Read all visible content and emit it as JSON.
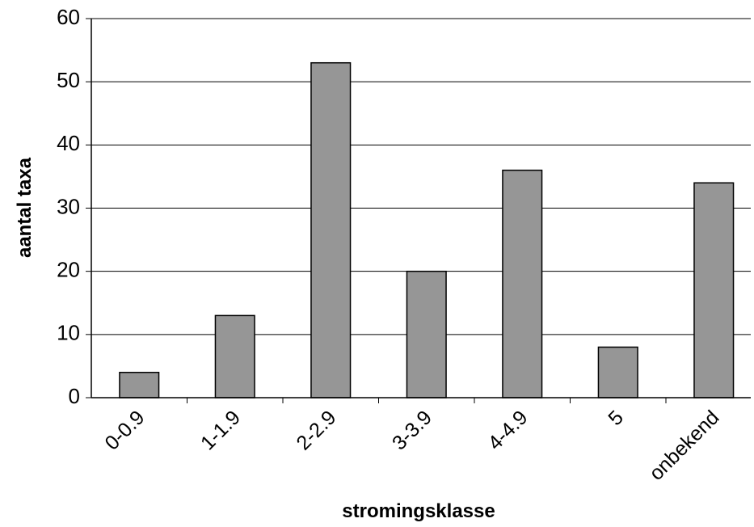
{
  "chart_data": {
    "type": "bar",
    "categories": [
      "0-0.9",
      "1-1.9",
      "2-2.9",
      "3-3.9",
      "4-4.9",
      "5",
      "onbekend"
    ],
    "values": [
      4,
      13,
      53,
      20,
      36,
      8,
      34
    ],
    "color": "#969696",
    "xlabel": "stromingsklasse",
    "ylabel": "aantal taxa",
    "ylim": [
      0,
      60
    ],
    "yticks": [
      0,
      10,
      20,
      30,
      40,
      50,
      60
    ],
    "grid": true
  }
}
